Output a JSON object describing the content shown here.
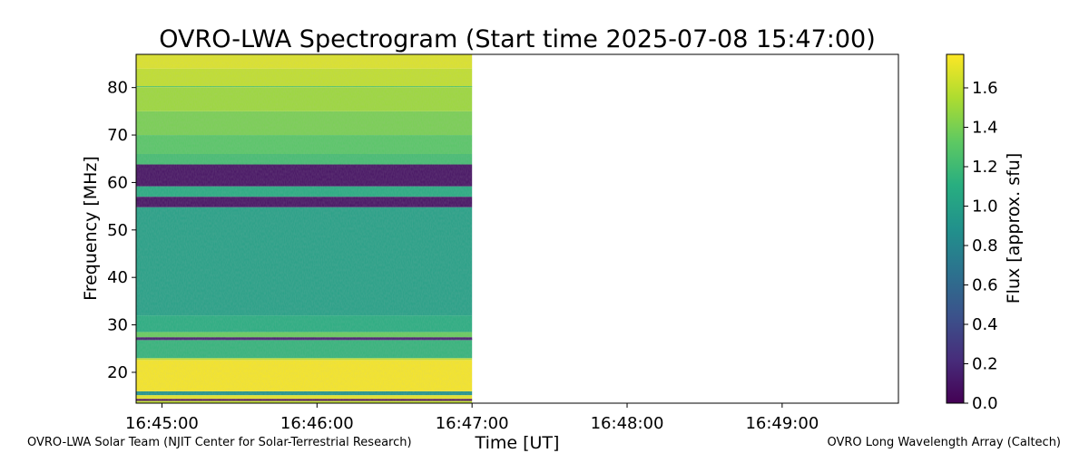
{
  "chart_data": {
    "type": "heatmap",
    "title": "OVRO-LWA Spectrogram (Start time 2025-07-08 15:47:00)",
    "xlabel": "Time [UT]",
    "ylabel": "Frequency [MHz]",
    "xlim": [
      "16:44:50",
      "16:49:45"
    ],
    "ylim": [
      13.5,
      87
    ],
    "x_ticks": [
      "16:45:00",
      "16:46:00",
      "16:47:00",
      "16:48:00",
      "16:49:00"
    ],
    "y_ticks": [
      20,
      30,
      40,
      50,
      60,
      70,
      80
    ],
    "data_time_range": [
      "16:44:50",
      "16:47:00"
    ],
    "colormap": "viridis",
    "grid": false,
    "colorbar": {
      "label": "Flux [approx. sfu]",
      "range": [
        0.0,
        1.77
      ],
      "ticks": [
        0.0,
        0.2,
        0.4,
        0.6,
        0.8,
        1.0,
        1.2,
        1.4,
        1.6
      ]
    },
    "frequency_bands": [
      {
        "from": 13.5,
        "to": 14.0,
        "flux": 1.6
      },
      {
        "from": 14.0,
        "to": 14.4,
        "flux": 0.0
      },
      {
        "from": 14.4,
        "to": 15.2,
        "flux": 1.7
      },
      {
        "from": 15.2,
        "to": 16.0,
        "flux": 0.9
      },
      {
        "from": 16.0,
        "to": 22.6,
        "flux": 1.75
      },
      {
        "from": 22.6,
        "to": 23.0,
        "flux": 1.6
      },
      {
        "from": 23.0,
        "to": 26.8,
        "flux": 1.15
      },
      {
        "from": 26.8,
        "to": 27.4,
        "flux": 0.1
      },
      {
        "from": 27.4,
        "to": 28.5,
        "flux": 1.35
      },
      {
        "from": 28.5,
        "to": 32.0,
        "flux": 1.1
      },
      {
        "from": 32.0,
        "to": 54.8,
        "flux": 1.0
      },
      {
        "from": 54.8,
        "to": 57.0,
        "flux": 0.08
      },
      {
        "from": 57.0,
        "to": 59.2,
        "flux": 1.08
      },
      {
        "from": 59.2,
        "to": 63.8,
        "flux": 0.08
      },
      {
        "from": 63.8,
        "to": 66.0,
        "flux": 1.22
      },
      {
        "from": 66.0,
        "to": 70.0,
        "flux": 1.3
      },
      {
        "from": 70.0,
        "to": 75.0,
        "flux": 1.4
      },
      {
        "from": 75.0,
        "to": 80.0,
        "flux": 1.5
      },
      {
        "from": 80.0,
        "to": 84.0,
        "flux": 1.6
      },
      {
        "from": 84.0,
        "to": 87.0,
        "flux": 1.68
      }
    ],
    "notes_lines": [
      {
        "freq": 80.2,
        "flux": 1.3
      },
      {
        "freq": 27.0,
        "flux": 0.2
      }
    ]
  },
  "credits": {
    "left": "OVRO-LWA Solar Team (NJIT Center for Solar-Terrestrial Research)",
    "right": "OVRO Long Wavelength Array (Caltech)"
  }
}
